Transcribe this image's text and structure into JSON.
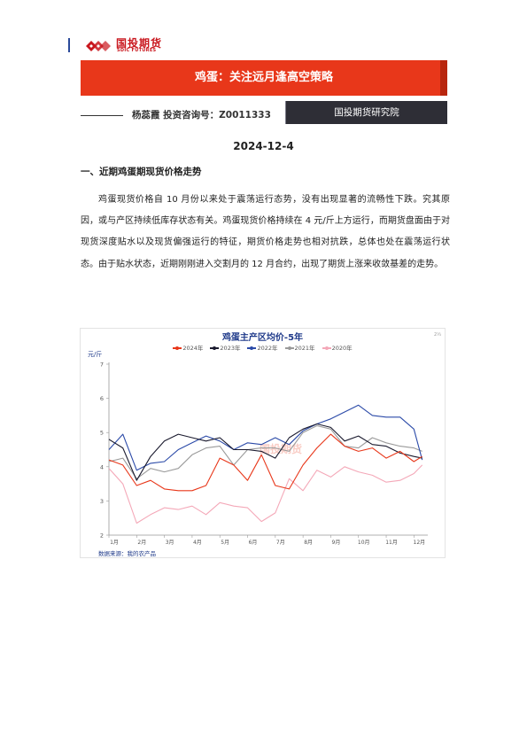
{
  "header": {
    "logo_name": "国投期货",
    "logo_sub": "SDIC FUTURES",
    "colors": {
      "brand_red": "#c9171e",
      "title_bar": "#e8371a",
      "dept_box": "#2e2e36",
      "side_mark": "#2b4a9a"
    }
  },
  "report": {
    "title": "鸡蛋：关注远月逢高空策略",
    "author": "杨蕊霞  投资咨询号：Z0011333",
    "department": "国投期货研究院",
    "date": "2024-12-4"
  },
  "section": {
    "heading": "一、近期鸡蛋期现货价格走势",
    "paragraph": "鸡蛋现货价格自 10 月份以来处于震荡运行态势，没有出现显著的流畅性下跌。究其原因，或与产区持续低库存状态有关。鸡蛋现货价格持续在 4 元/斤上方运行，而期货盘面由于对现货深度贴水以及现货偏强运行的特征，期货价格走势也相对抗跌，总体也处在震荡运行状态。由于贴水状态，近期刚刚进入交割月的 12 月合约，出现了期货上涨来收敛基差的走势。"
  },
  "chart_data": {
    "type": "line",
    "title": "鸡蛋主产区均价-5年",
    "corner_mark": "2⅓",
    "ylabel": "元/斤",
    "ylim": [
      2,
      7
    ],
    "y_ticks": [
      "2",
      "3",
      "4",
      "5",
      "6",
      "7"
    ],
    "x_ticks": [
      "1月",
      "2月",
      "3月",
      "4月",
      "5月",
      "6月",
      "7月",
      "8月",
      "9月",
      "10月",
      "11月",
      "12月"
    ],
    "x": [
      1,
      1.5,
      2,
      2.5,
      3,
      3.5,
      4,
      4.5,
      5,
      5.5,
      6,
      6.5,
      7,
      7.5,
      8,
      8.5,
      9,
      9.5,
      10,
      10.5,
      11,
      11.5,
      12,
      12.3
    ],
    "series": [
      {
        "name": "2024年",
        "color": "#e8371a",
        "values": [
          4.2,
          4.05,
          3.45,
          3.6,
          3.35,
          3.3,
          3.3,
          3.45,
          4.25,
          4.05,
          3.6,
          4.35,
          3.45,
          3.35,
          4.05,
          4.55,
          4.95,
          4.6,
          4.45,
          4.55,
          4.25,
          4.45,
          4.15,
          4.3
        ]
      },
      {
        "name": "2023年",
        "color": "#1a1a2e",
        "values": [
          4.8,
          4.55,
          3.6,
          4.3,
          4.75,
          4.95,
          4.85,
          4.75,
          4.85,
          4.5,
          4.5,
          4.45,
          4.25,
          4.85,
          5.1,
          5.25,
          5.15,
          4.75,
          4.9,
          4.65,
          4.6,
          4.4,
          4.3,
          4.25
        ]
      },
      {
        "name": "2022年",
        "color": "#2b4aa8",
        "values": [
          4.5,
          4.95,
          3.9,
          4.1,
          4.15,
          4.5,
          4.7,
          4.9,
          4.75,
          4.5,
          4.7,
          4.65,
          4.85,
          4.65,
          5.05,
          5.25,
          5.4,
          5.6,
          5.8,
          5.5,
          5.45,
          5.45,
          5.1,
          4.2
        ]
      },
      {
        "name": "2021年",
        "color": "#9a9a9a",
        "values": [
          4.15,
          4.25,
          3.65,
          3.95,
          3.85,
          3.95,
          4.35,
          4.55,
          4.6,
          4.05,
          4.5,
          4.55,
          4.55,
          4.45,
          5.0,
          5.2,
          5.1,
          4.6,
          4.55,
          4.85,
          4.7,
          4.6,
          4.55,
          4.45
        ]
      },
      {
        "name": "2020年",
        "color": "#f4a8b8",
        "values": [
          3.95,
          3.5,
          2.35,
          2.6,
          2.8,
          2.75,
          2.85,
          2.6,
          2.95,
          2.85,
          2.8,
          2.4,
          2.65,
          3.65,
          3.3,
          3.9,
          3.7,
          4.0,
          3.85,
          3.75,
          3.55,
          3.6,
          3.8,
          4.05
        ]
      }
    ],
    "watermark": "国投期货",
    "source": "数据来源：我的农产品"
  }
}
